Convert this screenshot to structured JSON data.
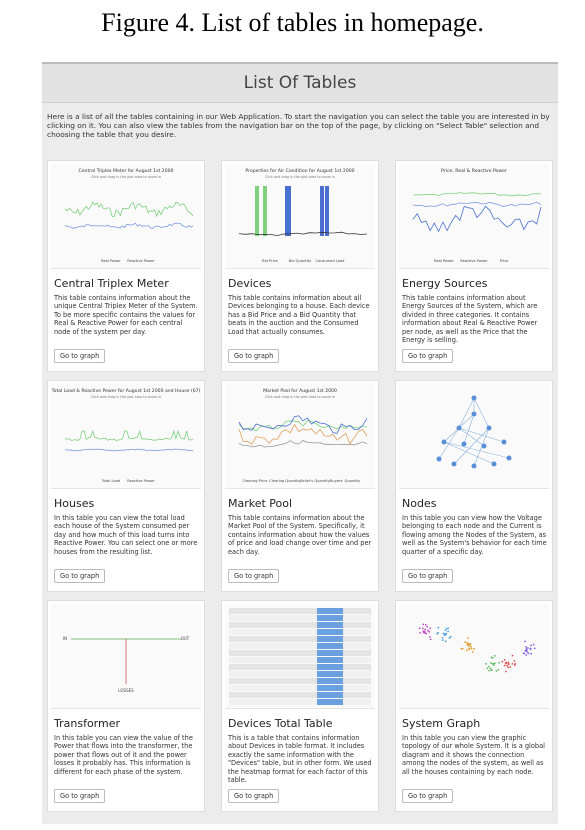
{
  "caption": "Figure 4. List of tables in homepage.",
  "page_title": "List Of Tables",
  "intro": "Here is a list of all the tables containing in our Web Application. To start the navigation you can select the table you are interested in by clicking on it. You can also view the tables from the navigation bar on the top of the page, by clicking on \"Select Table\" selection and choosing the table that you desire.",
  "cards": [
    {
      "title": "Central Triplex Meter",
      "thumb_title": "Central Triplex Meter for August 1st 2000",
      "thumb_subtitle": "Click and drag in the plot area to zoom in",
      "legend": [
        "Real Power",
        "Reactive Power"
      ],
      "description": "This table contains information about the unique Central Triplex Meter of the System. To be more specific contains the values for Real & Reactive Power for each central node of the system per day.",
      "button": "Go to graph"
    },
    {
      "title": "Devices",
      "thumb_title": "Properties for Air Condition for August 1st 2000",
      "thumb_subtitle": "Click and drag in the plot area to zoom in",
      "legend": [
        "Bid Price",
        "Bid Quantity",
        "Consumed Load"
      ],
      "description": "This table contains information about all Devices belonging to a house. Each device has a Bid Price and a Bid Quantity that beats in the auction and the Consumed Load that actually consumes.",
      "button": "Go to graph"
    },
    {
      "title": "Energy Sources",
      "thumb_title": "Price, Real & Reactive Power",
      "legend": [
        "Real Power",
        "Reactive Power",
        "Price"
      ],
      "description": "This table contains information about Energy Sources of the System, which are divided in three categories. It contains information about Real & Reactive Power per node, as well as the Price that the Energy is selling.",
      "button": "Go to graph"
    },
    {
      "title": "Houses",
      "thumb_title": "Total Load & Reactive Power for August 1st 2000 and House (67)",
      "thumb_subtitle": "Click and drag in the plot area to zoom in",
      "legend": [
        "Total Load",
        "Reactive Power"
      ],
      "description": "In this table you can view the total load each house of the System consumed per day and how much of this load turns into Reactive Power. You can select one or more houses from the resulting list.",
      "button": "Go to graph"
    },
    {
      "title": "Market Pool",
      "thumb_title": "Market Pool for August 1st 2000",
      "thumb_subtitle": "Click and drag in the plot area to zoom in",
      "legend": [
        "Clearing Price",
        "Clearing Quantity",
        "Seller's Quantity",
        "Buyers' Quantity"
      ],
      "description": "This table contains information about the Market Pool of the System. Specifically, it contains information about how the values of price and load change over time and per each day.",
      "button": "Go to graph"
    },
    {
      "title": "Nodes",
      "description": "In this table you can view how the Voltage belonging to each node and the Current is flowing among the Nodes of the System, as well as the System's behavior for each time quarter of a specific day.",
      "button": "Go to graph"
    },
    {
      "title": "Transformer",
      "thumb_labels": [
        "IN",
        "OUT",
        "LOSSES"
      ],
      "description": "In this table you can view the value of the Power that flows into the transformer, the power that flows out of it and the power losses it probably has. This information is different for each phase of the system.",
      "button": "Go to graph"
    },
    {
      "title": "Devices Total Table",
      "description": "This is a table that contains information about Devices in table format. It includes exactly the same information with the \"Devices\" table, but in other form. We used the heatmap format for each factor of this table.",
      "button": "Go to graph"
    },
    {
      "title": "System Graph",
      "description": "In this table you can view the graphic topology of our whole System. It is a global diagram and it shows the connection among the nodes of the system, as well as all the houses containing by each node.",
      "button": "Go to graph"
    }
  ]
}
